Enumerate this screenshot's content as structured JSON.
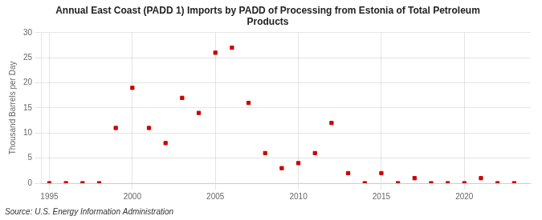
{
  "chart_data": {
    "type": "scatter",
    "title": "Annual East Coast (PADD 1) Imports by PADD of Processing from Estonia of Total Petroleum\nProducts",
    "ylabel": "Thousand Barrels per Day",
    "source": "Source: U.S. Energy Information Administration",
    "color": "#cc0000",
    "marker": "square",
    "grid": true,
    "xlim": [
      1994.5,
      2024
    ],
    "ylim": [
      0,
      30
    ],
    "xticks": [
      1995,
      2000,
      2005,
      2010,
      2015,
      2020
    ],
    "yticks": [
      0,
      5,
      10,
      15,
      20,
      25,
      30
    ],
    "x": [
      1995,
      1996,
      1997,
      1998,
      1999,
      2000,
      2001,
      2002,
      2003,
      2004,
      2005,
      2006,
      2007,
      2008,
      2009,
      2010,
      2011,
      2012,
      2013,
      2014,
      2015,
      2016,
      2017,
      2018,
      2019,
      2020,
      2021,
      2022,
      2023
    ],
    "values": [
      0,
      0,
      0,
      0,
      11,
      19,
      11,
      8,
      17,
      14,
      26,
      27,
      16,
      6,
      3,
      4,
      6,
      12,
      2,
      0,
      2,
      0,
      1,
      0,
      0,
      0,
      1,
      0,
      0
    ]
  }
}
